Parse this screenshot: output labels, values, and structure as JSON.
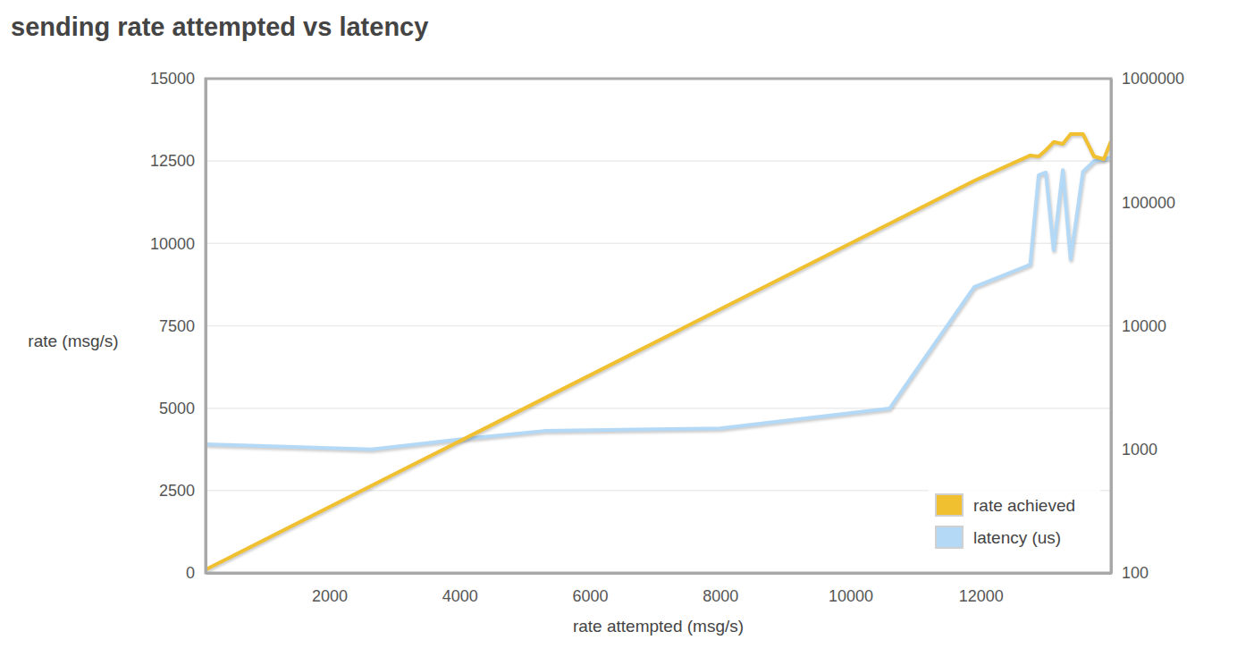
{
  "chart_data": {
    "type": "line",
    "title": "sending rate attempted vs latency",
    "x_label": "rate attempted (msg/s)",
    "y_label": "rate (msg/s)",
    "x": [
      100,
      2650,
      4100,
      5300,
      8000,
      10600,
      11900,
      12760,
      12890,
      13000,
      13120,
      13260,
      13380,
      13570,
      13740,
      13890,
      14000
    ],
    "series": [
      {
        "name": "rate achieved",
        "color": "#f0c030",
        "values": [
          100,
          2650,
          4100,
          5300,
          8000,
          10600,
          11900,
          12670,
          12640,
          12830,
          13080,
          13020,
          13320,
          13320,
          12640,
          12560,
          13100
        ]
      },
      {
        "name": "latency (us)",
        "color": "#b3d9f7",
        "axis": "y2",
        "values": [
          1100,
          1000,
          1220,
          1410,
          1480,
          2140,
          20600,
          31300,
          166000,
          174000,
          41000,
          182000,
          34600,
          177000,
          215000,
          222000,
          230000
        ]
      }
    ],
    "xlim": [
      100,
      14000
    ],
    "xticks": [
      2000,
      4000,
      6000,
      8000,
      10000,
      12000
    ],
    "ylim": [
      0,
      15000
    ],
    "yticks": [
      0,
      2500,
      5000,
      7500,
      10000,
      12500,
      15000
    ],
    "y2lim": [
      100,
      1000000
    ],
    "y2ticks": [
      100,
      1000,
      10000,
      100000,
      1000000
    ],
    "log": "y2",
    "grid": true,
    "legend": "lower right"
  }
}
